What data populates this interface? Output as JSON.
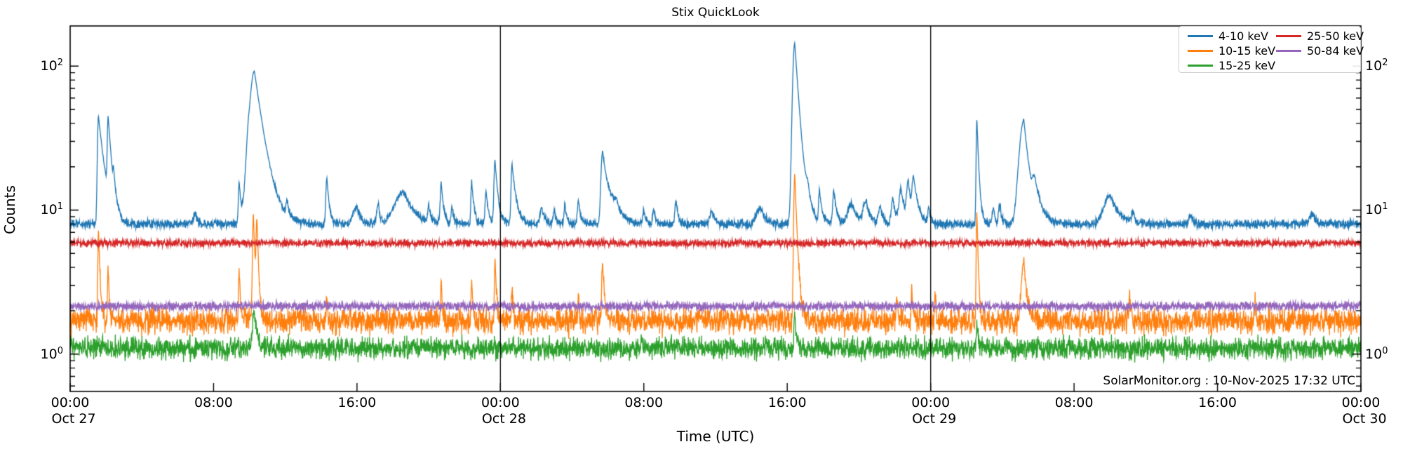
{
  "title": "Stix QuickLook",
  "xlabel": "Time (UTC)",
  "ylabel": "Counts",
  "footer": "SolarMonitor.org : 10-Nov-2025 17:32 UTC",
  "legend": {
    "items": [
      {
        "label": "4-10 keV",
        "color": "#1f77b4"
      },
      {
        "label": "10-15 keV",
        "color": "#ff7f0e"
      },
      {
        "label": "15-25 keV",
        "color": "#2ca02c"
      },
      {
        "label": "25-50 keV",
        "color": "#d62728"
      },
      {
        "label": "50-84 keV",
        "color": "#9467bd"
      }
    ]
  },
  "axes": {
    "x_ticks": [
      {
        "hour": 0,
        "label": "00:00",
        "day": "Oct 27"
      },
      {
        "hour": 8,
        "label": "08:00"
      },
      {
        "hour": 16,
        "label": "16:00"
      },
      {
        "hour": 24,
        "label": "00:00",
        "day": "Oct 28"
      },
      {
        "hour": 32,
        "label": "08:00"
      },
      {
        "hour": 40,
        "label": "16:00"
      },
      {
        "hour": 48,
        "label": "00:00",
        "day": "Oct 29"
      },
      {
        "hour": 56,
        "label": "08:00"
      },
      {
        "hour": 64,
        "label": "16:00"
      },
      {
        "hour": 72,
        "label": "00:00",
        "day": "Oct 30"
      }
    ],
    "y_ticks": [
      {
        "value": 1,
        "base": "10",
        "exp": "0"
      },
      {
        "value": 10,
        "base": "10",
        "exp": "1"
      },
      {
        "value": 100,
        "base": "10",
        "exp": "2"
      }
    ]
  },
  "chart_data": {
    "type": "line",
    "title": "Stix QuickLook",
    "xlabel": "Time (UTC)",
    "ylabel": "Counts",
    "x_unit": "hours since 2025-10-27 00:00 UTC",
    "xlim_hours": [
      0,
      72
    ],
    "ylim": [
      0.55,
      190
    ],
    "yscale": "log",
    "day_boundaries_hours": [
      24,
      48
    ],
    "legend_position": "upper right",
    "grid": false,
    "series": [
      {
        "name": "4-10 keV",
        "color": "#1f77b4",
        "baseline": 8.0,
        "noise_sigma": 0.033,
        "spikes": [
          [
            1.58,
            45,
            0.05,
            0.3
          ],
          [
            2.12,
            39,
            0.04,
            0.18
          ],
          [
            2.42,
            12,
            0.03,
            0.1
          ],
          [
            7.0,
            9.6,
            0.1,
            0.1
          ],
          [
            9.43,
            16,
            0.04,
            0.1
          ],
          [
            9.95,
            18,
            0.15,
            0.1
          ],
          [
            10.28,
            92,
            0.22,
            0.45
          ],
          [
            12.1,
            10.5,
            0.05,
            0.1
          ],
          [
            14.32,
            17,
            0.05,
            0.12
          ],
          [
            16.0,
            10.5,
            0.2,
            0.2
          ],
          [
            17.2,
            10.8,
            0.1,
            0.1
          ],
          [
            18.6,
            13.5,
            0.45,
            0.55
          ],
          [
            20.0,
            10.5,
            0.05,
            0.1
          ],
          [
            20.7,
            15.5,
            0.05,
            0.12
          ],
          [
            21.3,
            10.5,
            0.05,
            0.1
          ],
          [
            22.4,
            16,
            0.04,
            0.12
          ],
          [
            23.2,
            13.5,
            0.05,
            0.12
          ],
          [
            23.7,
            22.5,
            0.05,
            0.15
          ],
          [
            24.65,
            21,
            0.05,
            0.2
          ],
          [
            26.3,
            10.5,
            0.08,
            0.15
          ],
          [
            27.0,
            10.2,
            0.06,
            0.1
          ],
          [
            27.6,
            11,
            0.05,
            0.1
          ],
          [
            28.35,
            12,
            0.05,
            0.12
          ],
          [
            29.7,
            25.5,
            0.08,
            0.3
          ],
          [
            30.5,
            10.5,
            0.3,
            0.3
          ],
          [
            32.0,
            10.3,
            0.05,
            0.1
          ],
          [
            32.55,
            10.5,
            0.05,
            0.1
          ],
          [
            33.8,
            11.5,
            0.06,
            0.12
          ],
          [
            35.8,
            10,
            0.1,
            0.15
          ],
          [
            38.5,
            10.5,
            0.2,
            0.3
          ],
          [
            40.42,
            145,
            0.1,
            0.22
          ],
          [
            41.15,
            11,
            0.1,
            0.2
          ],
          [
            41.8,
            13.2,
            0.05,
            0.15
          ],
          [
            42.6,
            13.7,
            0.06,
            0.15
          ],
          [
            43.6,
            11,
            0.2,
            0.3
          ],
          [
            44.4,
            11.5,
            0.15,
            0.2
          ],
          [
            45.2,
            10.5,
            0.1,
            0.15
          ],
          [
            45.9,
            12,
            0.08,
            0.15
          ],
          [
            46.35,
            14,
            0.1,
            0.2
          ],
          [
            46.75,
            15.5,
            0.08,
            0.15
          ],
          [
            47.05,
            16,
            0.08,
            0.25
          ],
          [
            47.9,
            10,
            0.05,
            0.1
          ],
          [
            50.58,
            43,
            0.035,
            0.1
          ],
          [
            51.5,
            10.5,
            0.06,
            0.1
          ],
          [
            51.85,
            11,
            0.05,
            0.1
          ],
          [
            53.2,
            42,
            0.22,
            0.28
          ],
          [
            53.8,
            13.5,
            0.1,
            0.35
          ],
          [
            58.0,
            12.8,
            0.3,
            0.45
          ],
          [
            59.3,
            9.5,
            0.1,
            0.1
          ],
          [
            62.5,
            9.3,
            0.1,
            0.1
          ],
          [
            69.3,
            9.5,
            0.15,
            0.2
          ]
        ]
      },
      {
        "name": "10-15 keV",
        "color": "#ff7f0e",
        "baseline": 1.7,
        "noise_sigma": 0.1,
        "spikes": [
          [
            1.58,
            7.4,
            0.03,
            0.08
          ],
          [
            2.12,
            4.0,
            0.03,
            0.06
          ],
          [
            9.43,
            3.9,
            0.03,
            0.06
          ],
          [
            10.22,
            9.3,
            0.04,
            0.1
          ],
          [
            10.42,
            8.0,
            0.04,
            0.08
          ],
          [
            14.32,
            2.6,
            0.03,
            0.05
          ],
          [
            20.7,
            3.4,
            0.03,
            0.06
          ],
          [
            22.4,
            3.1,
            0.03,
            0.06
          ],
          [
            23.7,
            4.3,
            0.03,
            0.08
          ],
          [
            24.65,
            3.05,
            0.03,
            0.06
          ],
          [
            28.35,
            2.4,
            0.03,
            0.05
          ],
          [
            29.7,
            4.45,
            0.04,
            0.1
          ],
          [
            40.42,
            17.8,
            0.05,
            0.12
          ],
          [
            46.1,
            2.5,
            0.03,
            0.05
          ],
          [
            46.95,
            2.9,
            0.03,
            0.05
          ],
          [
            48.25,
            2.8,
            0.03,
            0.05
          ],
          [
            50.58,
            9.8,
            0.03,
            0.07
          ],
          [
            53.2,
            4.4,
            0.12,
            0.15
          ],
          [
            59.1,
            2.6,
            0.03,
            0.05
          ],
          [
            66.1,
            2.3,
            0.03,
            0.05
          ]
        ]
      },
      {
        "name": "15-25 keV",
        "color": "#2ca02c",
        "baseline": 1.1,
        "noise_sigma": 0.085,
        "spikes": [
          [
            10.28,
            1.95,
            0.1,
            0.15
          ],
          [
            40.42,
            1.8,
            0.04,
            0.1
          ],
          [
            50.58,
            1.6,
            0.03,
            0.07
          ]
        ]
      },
      {
        "name": "25-50 keV",
        "color": "#d62728",
        "baseline": 5.9,
        "noise_sigma": 0.026,
        "spikes": []
      },
      {
        "name": "50-84 keV",
        "color": "#9467bd",
        "baseline": 2.15,
        "noise_sigma": 0.033,
        "spikes": []
      }
    ]
  }
}
